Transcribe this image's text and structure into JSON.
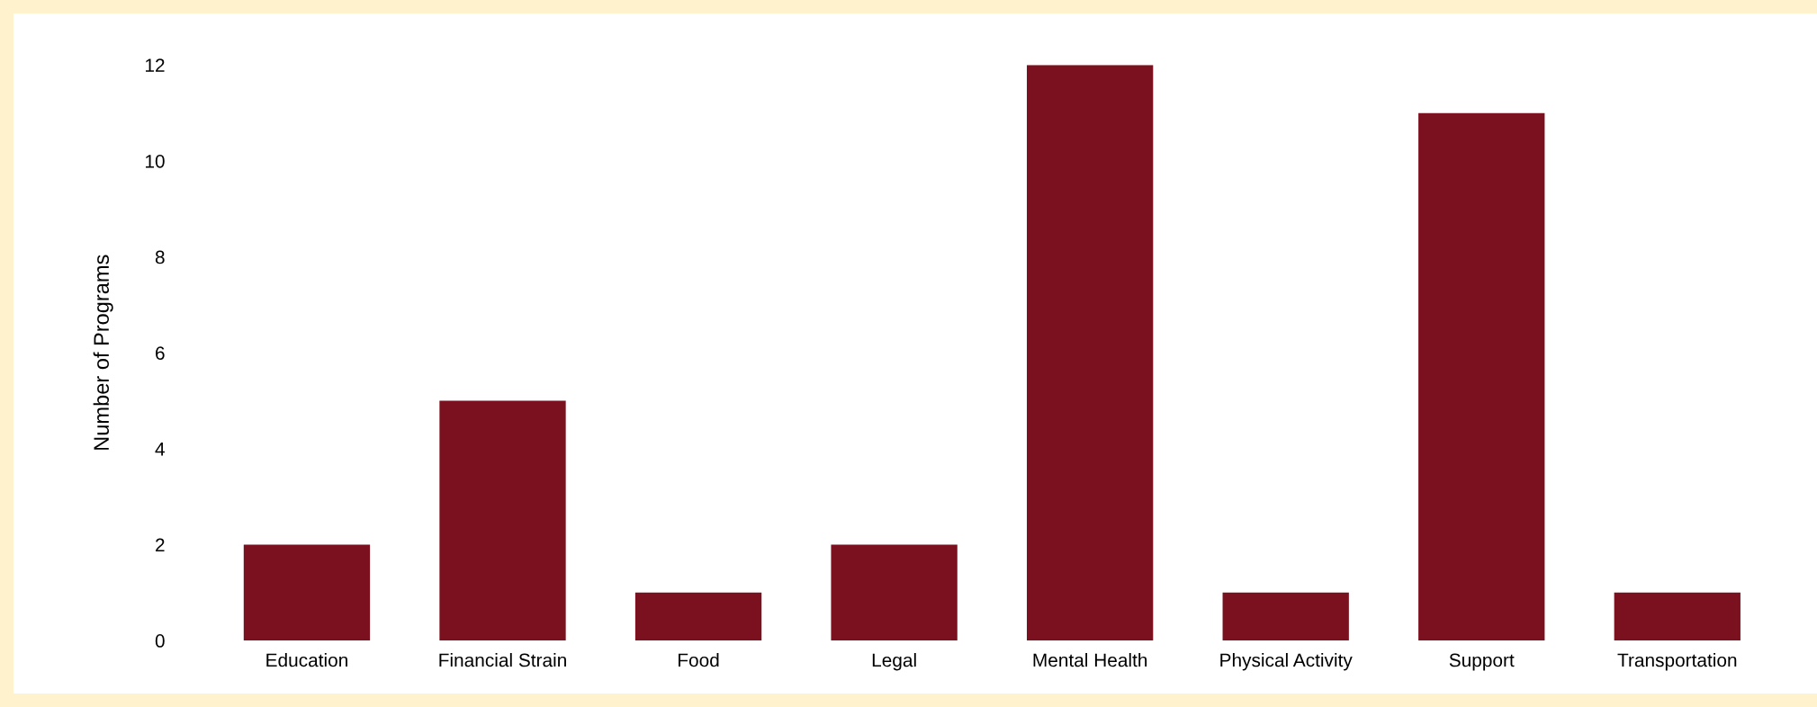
{
  "chart_data": {
    "type": "bar",
    "ylabel": "Number of Programs",
    "categories": [
      "Education",
      "Financial Strain",
      "Food",
      "Legal",
      "Mental Health",
      "Physical Activity",
      "Support",
      "Transportation"
    ],
    "values": [
      2,
      5,
      1,
      2,
      12,
      1,
      11,
      1
    ],
    "color": "#7b111e",
    "ylim": [
      0,
      12
    ],
    "yticks": [
      0,
      2,
      4,
      6,
      8,
      10,
      12
    ]
  }
}
